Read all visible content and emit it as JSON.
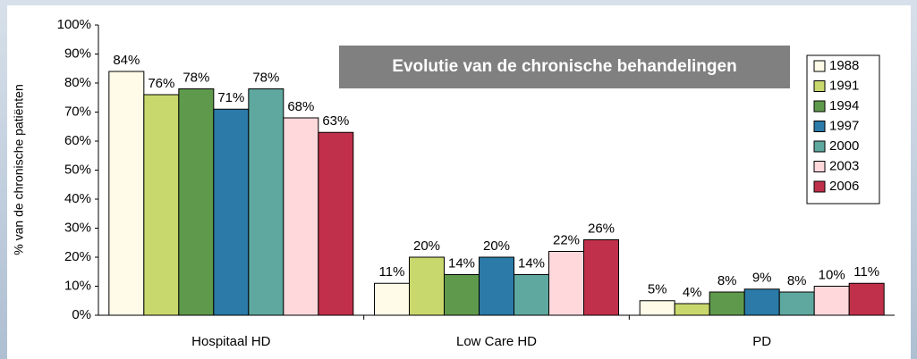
{
  "chart_data": {
    "type": "bar",
    "title": "Evolutie van de chronische behandelingen",
    "y_label": "% van de chronische patiënten",
    "categories": [
      "Hospitaal HD",
      "Low Care HD",
      "PD"
    ],
    "series": [
      {
        "name": "1988",
        "color": "#fffbe8",
        "values": [
          84,
          11,
          5
        ],
        "value_labels": [
          "84%",
          "11%",
          "5%"
        ]
      },
      {
        "name": "1991",
        "color": "#c9d86c",
        "values": [
          76,
          20,
          4
        ],
        "value_labels": [
          "76%",
          "20%",
          "4%"
        ]
      },
      {
        "name": "1994",
        "color": "#5f9a4c",
        "values": [
          78,
          14,
          8
        ],
        "value_labels": [
          "78%",
          "14%",
          "8%"
        ]
      },
      {
        "name": "1997",
        "color": "#2b7aa8",
        "values": [
          71,
          20,
          9
        ],
        "value_labels": [
          "71%",
          "20%",
          "9%"
        ]
      },
      {
        "name": "2000",
        "color": "#5fa8a0",
        "values": [
          78,
          14,
          8
        ],
        "value_labels": [
          "78%",
          "14%",
          "8%"
        ]
      },
      {
        "name": "2003",
        "color": "#ffd8dc",
        "values": [
          68,
          22,
          10
        ],
        "value_labels": [
          "68%",
          "22%",
          "10%"
        ]
      },
      {
        "name": "2006",
        "color": "#c0304a",
        "values": [
          63,
          26,
          11
        ],
        "value_labels": [
          "63%",
          "26%",
          "11%"
        ]
      }
    ],
    "ylim": [
      0,
      100
    ],
    "yticks": [
      {
        "value": 0,
        "label": "0%"
      },
      {
        "value": 10,
        "label": "10%"
      },
      {
        "value": 20,
        "label": "20%"
      },
      {
        "value": 30,
        "label": "30%"
      },
      {
        "value": 40,
        "label": "40%"
      },
      {
        "value": 50,
        "label": "50%"
      },
      {
        "value": 60,
        "label": "60%"
      },
      {
        "value": 70,
        "label": "70%"
      },
      {
        "value": 80,
        "label": "80%"
      },
      {
        "value": 90,
        "label": "90%"
      },
      {
        "value": 100,
        "label": "100%"
      }
    ],
    "legend": "right"
  }
}
